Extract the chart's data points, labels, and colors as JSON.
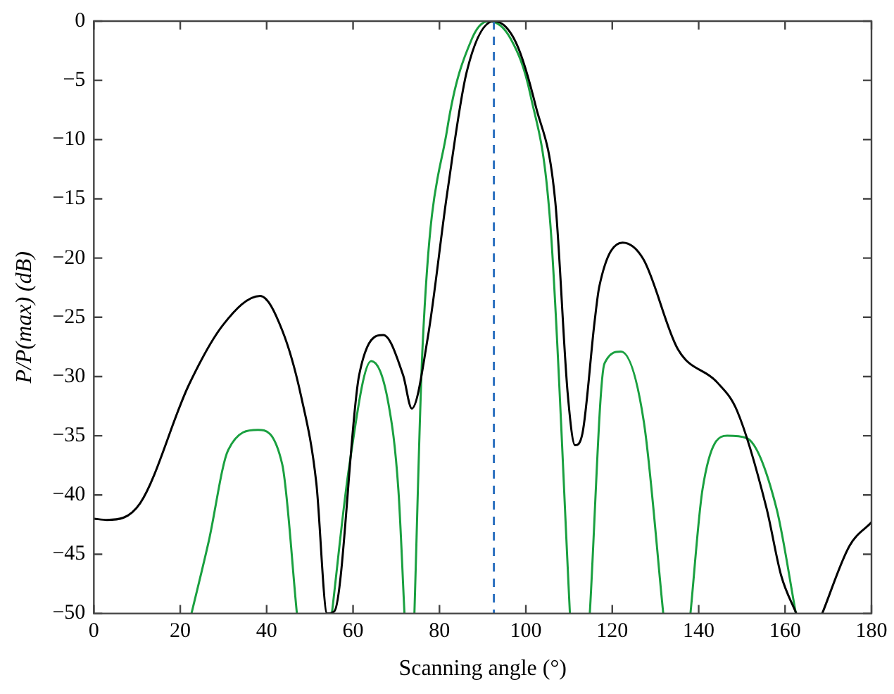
{
  "chart_data": {
    "type": "line",
    "xlabel": "Scanning angle (°)",
    "ylabel": "P/P(max) (dB)",
    "xlim": [
      0,
      180
    ],
    "xticks": [
      0,
      20,
      40,
      60,
      80,
      100,
      120,
      140,
      160,
      180
    ],
    "ylim": [
      -50,
      0
    ],
    "yticks": [
      -50,
      -45,
      -40,
      -35,
      -30,
      -25,
      -20,
      -15,
      -10,
      -5,
      0
    ],
    "grid": false,
    "legend": false,
    "marker": "none",
    "line_style": "solid",
    "series": [
      {
        "color": "#000000",
        "x": [
          0,
          3,
          10.7,
          22,
          30,
          38.5,
          43.6,
          48,
          51.5,
          54,
          55.7,
          61.4,
          67,
          71.6,
          73.6,
          77.3,
          81.8,
          86.3,
          92.6,
          97.7,
          102.3,
          106.8,
          109.7,
          111.4,
          113.1,
          115.9,
          117,
          122.4,
          127.2,
          135.2,
          144.3,
          148.9,
          155.7,
          159.1,
          162.6,
          165,
          168.6,
          174.9,
          180
        ],
        "values": [
          -42,
          -42.1,
          -40.7,
          -30.7,
          -25.6,
          -23.2,
          -26.1,
          -31.7,
          -39,
          -50,
          -49.8,
          -29.9,
          -26.5,
          -29.9,
          -32.7,
          -26.7,
          -14.5,
          -4.3,
          0,
          -1.8,
          -7.2,
          -15.2,
          -31.5,
          -35.8,
          -34.8,
          -25.4,
          -22.4,
          -18.7,
          -20.1,
          -27.7,
          -30.5,
          -32.9,
          -41.1,
          -46.8,
          -50,
          null,
          -50,
          -44.3,
          -42.3
        ]
      },
      {
        "color": "#1aa040",
        "x": [
          22.6,
          26.6,
          31.1,
          38,
          43.6,
          47,
          51,
          55.1,
          59.1,
          64.2,
          68.2,
          70.5,
          71.9,
          73,
          74.2,
          76.1,
          81.8,
          87.5,
          91.4,
          96.5,
          101.1,
          105.7,
          110.2,
          112.5,
          114.8,
          118.2,
          122,
          127.3,
          131.8,
          135,
          138.1,
          140.9,
          146.6,
          151.1,
          158,
          162.5
        ],
        "values": [
          -50,
          -43.9,
          -36.2,
          -34.5,
          -37.4,
          -50,
          null,
          -50,
          -37.6,
          -28.7,
          -32.3,
          -39.6,
          -50,
          null,
          -50,
          -27.4,
          -9.1,
          -1.5,
          0,
          -1.5,
          -6.3,
          -17.3,
          -50,
          null,
          -50,
          -28.9,
          -27.9,
          -33.8,
          -50,
          null,
          -50,
          -39.5,
          -35,
          -35.2,
          -41.1,
          -50
        ]
      }
    ],
    "ref_lines": [
      {
        "axis": "x",
        "value": 92.6,
        "color": "#2a6fbf",
        "line_style": "dashed"
      }
    ]
  }
}
